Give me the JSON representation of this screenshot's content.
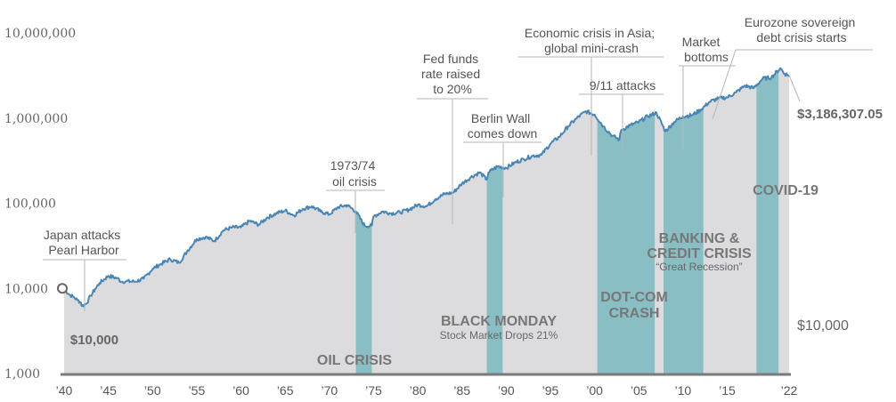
{
  "chart_data": {
    "type": "area",
    "y_scale": "log",
    "ylim": [
      1000,
      10000000
    ],
    "xlim": [
      1940,
      2022
    ],
    "y_ticks": [
      {
        "value": 1000,
        "label": "1,000"
      },
      {
        "value": 10000,
        "label": "10,000"
      },
      {
        "value": 100000,
        "label": "100,000"
      },
      {
        "value": 1000000,
        "label": "1,000,000"
      },
      {
        "value": 10000000,
        "label": "10,000,000"
      }
    ],
    "x_ticks": [
      {
        "value": 1940,
        "label": "’40"
      },
      {
        "value": 1945,
        "label": "’45"
      },
      {
        "value": 1950,
        "label": "’50"
      },
      {
        "value": 1955,
        "label": "’55"
      },
      {
        "value": 1960,
        "label": "’60"
      },
      {
        "value": 1965,
        "label": "’65"
      },
      {
        "value": 1970,
        "label": "’70"
      },
      {
        "value": 1975,
        "label": "’75"
      },
      {
        "value": 1980,
        "label": "’80"
      },
      {
        "value": 1985,
        "label": "’85"
      },
      {
        "value": 1990,
        "label": "’90"
      },
      {
        "value": 1995,
        "label": "’95"
      },
      {
        "value": 2000,
        "label": "’00"
      },
      {
        "value": 2005,
        "label": "’05"
      },
      {
        "value": 2010,
        "label": "’10"
      },
      {
        "value": 2015,
        "label": "’15"
      },
      {
        "value": 2022,
        "label": "’22"
      }
    ],
    "series": [
      {
        "x": [
          1940,
          1940.5,
          1941,
          1941.5,
          1941.9,
          1942,
          1942.5,
          1943,
          1943.5,
          1944,
          1945,
          1946,
          1946.5,
          1947,
          1948,
          1949,
          1950,
          1951,
          1952,
          1953,
          1954,
          1955,
          1956,
          1957,
          1958,
          1959,
          1960,
          1961,
          1962,
          1963,
          1964,
          1965,
          1966,
          1967,
          1968,
          1969,
          1970,
          1971,
          1972,
          1973,
          1974,
          1974.8,
          1975,
          1976,
          1977,
          1978,
          1979,
          1980,
          1981,
          1982,
          1983,
          1984,
          1985,
          1986,
          1987,
          1987.8,
          1988,
          1989,
          1990,
          1991,
          1992,
          1993,
          1994,
          1995,
          1996,
          1997,
          1998,
          1999,
          2000,
          2001,
          2002,
          2002.8,
          2003,
          2004,
          2005,
          2006,
          2007,
          2008,
          2009,
          2010,
          2011,
          2012,
          2013,
          2014,
          2015,
          2016,
          2017,
          2018,
          2019,
          2020,
          2021,
          2021.5,
          2022
        ],
        "values": [
          10000,
          8600,
          8000,
          7300,
          6800,
          6200,
          6600,
          8200,
          9800,
          11500,
          14000,
          13200,
          12000,
          12100,
          12000,
          13000,
          17000,
          19500,
          22000,
          20000,
          28000,
          38000,
          40000,
          36000,
          48000,
          52000,
          52000,
          62000,
          56000,
          68000,
          76000,
          82000,
          72000,
          86000,
          92000,
          80000,
          74000,
          90000,
          95000,
          80000,
          54000,
          55000,
          70000,
          80000,
          76000,
          78000,
          84000,
          96000,
          92000,
          112000,
          128000,
          133000,
          170000,
          202000,
          230000,
          190000,
          230000,
          270000,
          260000,
          300000,
          330000,
          360000,
          370000,
          500000,
          600000,
          800000,
          1000000,
          1200000,
          1100000,
          800000,
          620000,
          560000,
          720000,
          820000,
          900000,
          1050000,
          1150000,
          700000,
          900000,
          1050000,
          1080000,
          1250000,
          1550000,
          1700000,
          1750000,
          2000000,
          2400000,
          2250000,
          2900000,
          3000000,
          3850000,
          3300000,
          3186307
        ]
      }
    ],
    "crisis_periods": [
      {
        "name": "OIL CRISIS",
        "start": 1973,
        "end": 1974.8
      },
      {
        "name": "BLACK MONDAY",
        "start": 1987.8,
        "end": 1989.6
      },
      {
        "name": "DOT-COM CRASH",
        "start": 2000.3,
        "end": 2006.8
      },
      {
        "name": "BANKING & CREDIT CRISIS",
        "start": 2007.8,
        "end": 2012.3
      },
      {
        "name": "COVID-19",
        "start": 2018.3,
        "end": 2020.8
      }
    ],
    "annotations": [
      {
        "lines": [
          "Japan attacks",
          "Pearl Harbor"
        ],
        "x": 1941.9
      },
      {
        "lines": [
          "1973/74",
          "oil crisis"
        ],
        "x": 1973.1
      },
      {
        "lines": [
          "Fed funds",
          "rate raised",
          "to 20%"
        ],
        "x": 1981.5
      },
      {
        "lines": [
          "Berlin Wall",
          "comes down"
        ],
        "x": 1989.1
      },
      {
        "lines": [
          "Economic crisis in Asia;",
          "global mini-crash"
        ],
        "x": 1998.6
      },
      {
        "lines": [
          "9/11 attacks"
        ],
        "x": 2001.7
      },
      {
        "lines": [
          "Market",
          "bottoms"
        ],
        "x": 2009.2
      },
      {
        "lines": [
          "Eurozone sovereign",
          "debt crisis starts"
        ],
        "x": 2010.0
      }
    ],
    "crisis_labels": {
      "oil": "OIL CRISIS",
      "black_monday": "BLACK MONDAY",
      "black_monday_sub": "Stock Market Drops 21%",
      "dotcom_1": "DOT-COM",
      "dotcom_2": "CRASH",
      "banking_1": "BANKING &",
      "banking_2": "CREDIT CRISIS",
      "banking_sub": "“Great Recession”",
      "covid": "COVID-19"
    },
    "start_value_label": "$10,000",
    "end_value_label": "$3,186,307.05",
    "reference_label": "$10,000",
    "colors": {
      "area": "#dcdcde",
      "line": "#4a86b4",
      "crisis": "#89bfc4",
      "axis": "#7a7a7a",
      "leader": "#b5b5b5"
    }
  }
}
